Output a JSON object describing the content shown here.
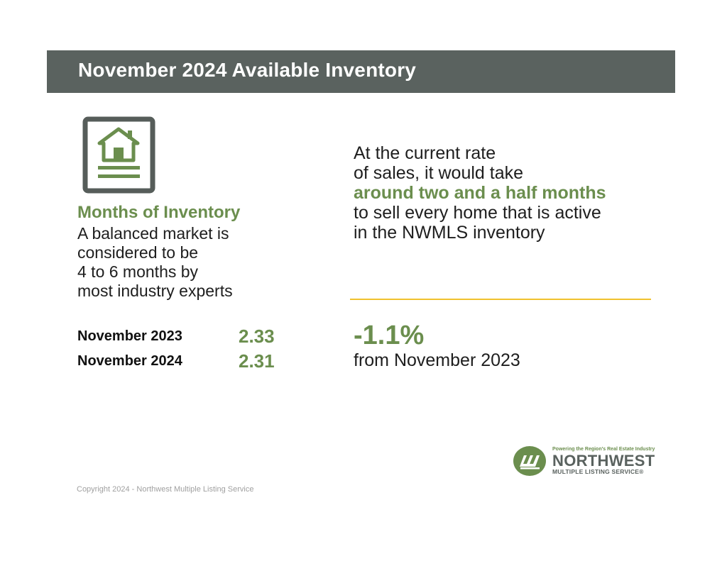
{
  "banner": {
    "title": "November 2024 Available Inventory"
  },
  "icon": {
    "name": "house-icon",
    "frame_color": "#565d5a",
    "house_color": "#6b8e4e"
  },
  "months_of_inventory": {
    "heading": "Months of Inventory",
    "description_lines": [
      "A balanced market is",
      "considered to be",
      "4 to 6 months by",
      "most industry experts"
    ]
  },
  "stats": [
    {
      "label": "November 2023",
      "value": "2.33"
    },
    {
      "label": "November 2024",
      "value": "2.31"
    }
  ],
  "rate_statement": {
    "line1": "At the current rate",
    "line2": "of sales, it would take",
    "highlight": "around two and a half months",
    "line4": "to sell every home that is active",
    "line5": "in the NWMLS inventory"
  },
  "change": {
    "value": "-1.1%",
    "caption": "from November 2023"
  },
  "logo": {
    "tagline": "Powering the Region's Real Estate Industry",
    "name": "NORTHWEST",
    "subtitle": "MULTIPLE LISTING SERVICE®"
  },
  "footer": {
    "copyright": "Copyright 2024 - Northwest Multiple Listing Service"
  },
  "colors": {
    "banner": "#5a625f",
    "accent_green": "#6b8e4e",
    "divider_yellow": "#f0c22e"
  }
}
